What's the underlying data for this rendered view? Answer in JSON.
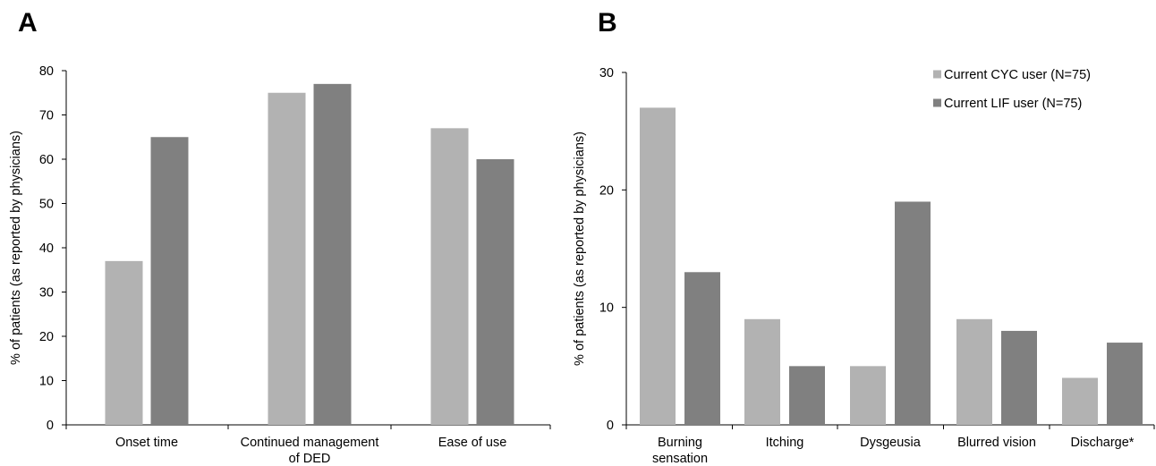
{
  "colors": {
    "cyc": "#b2b2b2",
    "lif": "#808080",
    "axis": "#000000"
  },
  "chart_data": [
    {
      "panel": "A",
      "type": "bar",
      "ylabel": "% of patients (as reported by physicians)",
      "ylim": [
        0,
        80
      ],
      "yticks": [
        "0",
        "10",
        "20",
        "30",
        "40",
        "50",
        "60",
        "70",
        "80"
      ],
      "categories": [
        [
          "Onset time"
        ],
        [
          "Continued management",
          "of DED"
        ],
        [
          "Ease of use"
        ]
      ],
      "series": [
        {
          "name": "Current CYC user (N=75)",
          "values": [
            37,
            75,
            67
          ]
        },
        {
          "name": "Current LIF user (N=75)",
          "values": [
            65,
            77,
            60
          ]
        }
      ],
      "grid": false,
      "legend": "none"
    },
    {
      "panel": "B",
      "type": "bar",
      "ylabel": "% of patients (as reported by physicians)",
      "ylim": [
        0,
        30
      ],
      "yticks": [
        "0",
        "10",
        "20",
        "30"
      ],
      "categories": [
        [
          "Burning",
          "sensation"
        ],
        [
          "Itching"
        ],
        [
          "Dysgeusia"
        ],
        [
          "Blurred vision"
        ],
        [
          "Discharge*"
        ]
      ],
      "series": [
        {
          "name": "Current CYC user (N=75)",
          "values": [
            27,
            9,
            5,
            9,
            4
          ]
        },
        {
          "name": "Current LIF user (N=75)",
          "values": [
            13,
            5,
            19,
            8,
            7
          ]
        }
      ],
      "grid": false,
      "legend": "top-right"
    }
  ]
}
